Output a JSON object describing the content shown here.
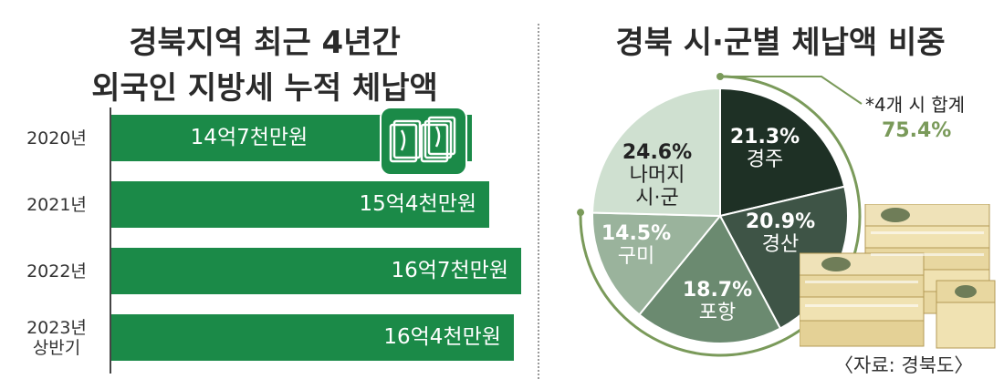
{
  "chart_data": [
    {
      "type": "bar",
      "orientation": "horizontal",
      "title": "경북지역 최근 4년간\n외국인 지방세 누적 체납액",
      "categories": [
        "2020년",
        "2021년",
        "2022년",
        "2023년\n상반기"
      ],
      "values": [
        14.7,
        15.4,
        16.7,
        16.4
      ],
      "value_labels": [
        "14억7천만원",
        "15억4천만원",
        "16억7천만원",
        "16억4천만원"
      ],
      "xlim": [
        0,
        16.7
      ],
      "color": "#1b8a48",
      "grid": false
    },
    {
      "type": "pie",
      "title": "경북 시·군별 체납액 비중",
      "slices": [
        {
          "name": "경주",
          "value": 21.3,
          "label": "21.3%",
          "color": "#1e3025",
          "text_color": "#ffffff"
        },
        {
          "name": "경산",
          "value": 20.9,
          "label": "20.9%",
          "color": "#3e5446",
          "text_color": "#ffffff"
        },
        {
          "name": "포항",
          "value": 18.7,
          "label": "18.7%",
          "color": "#6b8a70",
          "text_color": "#ffffff"
        },
        {
          "name": "구미",
          "value": 14.5,
          "label": "14.5%",
          "color": "#9ab39c",
          "text_color": "#ffffff"
        },
        {
          "name": "나머지\n시·군",
          "value": 24.6,
          "label": "24.6%",
          "color": "#cfe0d0",
          "text_color": "#222222"
        }
      ],
      "annotation": {
        "note": "*4개 시 합계",
        "total": "75.4%",
        "arc_color": "#7a9a5a"
      }
    }
  ],
  "source": "〈자료: 경북도〉"
}
